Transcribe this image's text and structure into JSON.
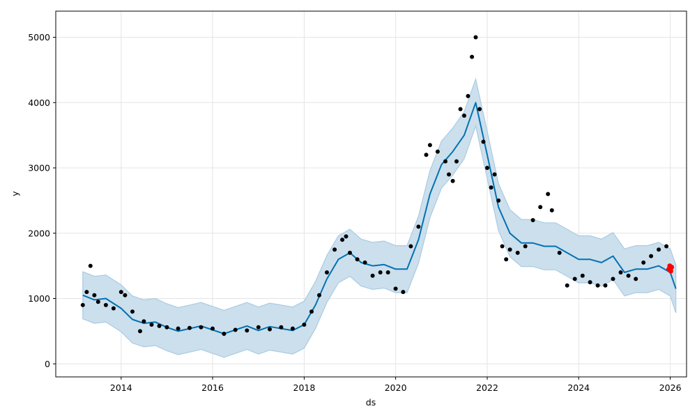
{
  "chart_data": {
    "type": "line",
    "title": "",
    "xlabel": "ds",
    "ylabel": "y",
    "xlim": [
      "2012-07-28",
      "2026-05-11"
    ],
    "ylim": [
      -200,
      5400
    ],
    "x_ticks": [
      "2014",
      "2016",
      "2018",
      "2020",
      "2022",
      "2024",
      "2026"
    ],
    "y_ticks": [
      0,
      1000,
      2000,
      3000,
      4000,
      5000
    ],
    "grid": true,
    "legend": "none",
    "colors": {
      "forecast_line": "#0072b2",
      "uncertainty_band": "#c6dceb",
      "uncertainty_edge": "#a9cbe2",
      "observed_points": "#000000",
      "highlight_points": "#ff0000",
      "grid": "#e4e4e4"
    },
    "series": [
      {
        "kind": "forecast",
        "x": [
          "2013-03-01",
          "2013-06-01",
          "2013-09-01",
          "2014-01-01",
          "2014-04-01",
          "2014-07-01",
          "2014-10-01",
          "2015-01-01",
          "2015-04-01",
          "2015-07-01",
          "2015-10-01",
          "2016-01-01",
          "2016-04-01",
          "2016-07-01",
          "2016-10-01",
          "2017-01-01",
          "2017-04-01",
          "2017-07-01",
          "2017-10-01",
          "2018-01-01",
          "2018-04-01",
          "2018-07-01",
          "2018-10-01",
          "2019-01-01",
          "2019-04-01",
          "2019-07-01",
          "2019-10-01",
          "2020-01-01",
          "2020-04-01",
          "2020-07-01",
          "2020-10-01",
          "2021-01-01",
          "2021-04-01",
          "2021-07-01",
          "2021-10-01",
          "2022-01-01",
          "2022-04-01",
          "2022-07-01",
          "2022-10-01",
          "2023-01-01",
          "2023-04-01",
          "2023-07-01",
          "2023-10-01",
          "2024-01-01",
          "2024-04-01",
          "2024-07-01",
          "2024-10-01",
          "2025-01-01",
          "2025-04-01",
          "2025-07-01",
          "2025-10-01",
          "2026-01-01",
          "2026-02-15"
        ],
        "yhat": [
          1050,
          980,
          1000,
          850,
          680,
          620,
          640,
          560,
          500,
          540,
          580,
          520,
          460,
          520,
          580,
          510,
          570,
          540,
          510,
          600,
          900,
          1300,
          1600,
          1700,
          1550,
          1500,
          1520,
          1450,
          1450,
          1900,
          2600,
          3050,
          3250,
          3500,
          4000,
          3200,
          2400,
          2000,
          1850,
          1850,
          1800,
          1800,
          1700,
          1600,
          1600,
          1550,
          1650,
          1400,
          1450,
          1450,
          1500,
          1400,
          1150
        ],
        "yhat_lower": [
          690,
          620,
          640,
          490,
          320,
          260,
          280,
          200,
          140,
          180,
          220,
          160,
          100,
          160,
          220,
          150,
          210,
          180,
          150,
          240,
          540,
          940,
          1240,
          1340,
          1190,
          1140,
          1160,
          1090,
          1090,
          1540,
          2240,
          2690,
          2890,
          3140,
          3640,
          2840,
          2040,
          1640,
          1490,
          1490,
          1440,
          1440,
          1340,
          1240,
          1240,
          1190,
          1290,
          1040,
          1090,
          1090,
          1140,
          1040,
          780
        ],
        "yhat_upper": [
          1410,
          1340,
          1360,
          1210,
          1040,
          980,
          1000,
          920,
          860,
          900,
          940,
          880,
          820,
          880,
          940,
          870,
          930,
          900,
          870,
          960,
          1260,
          1660,
          1960,
          2060,
          1910,
          1860,
          1880,
          1810,
          1810,
          2260,
          2960,
          3410,
          3610,
          3860,
          4360,
          3560,
          2760,
          2360,
          2210,
          2210,
          2160,
          2160,
          2060,
          1960,
          1960,
          1910,
          2010,
          1760,
          1810,
          1810,
          1860,
          1760,
          1520
        ]
      },
      {
        "kind": "observed",
        "x": [
          "2013-03-01",
          "2013-04-01",
          "2013-05-01",
          "2013-06-01",
          "2013-07-01",
          "2013-09-01",
          "2013-11-01",
          "2014-01-01",
          "2014-02-01",
          "2014-04-01",
          "2014-06-01",
          "2014-07-01",
          "2014-09-01",
          "2014-11-01",
          "2015-01-01",
          "2015-04-01",
          "2015-07-01",
          "2015-10-01",
          "2016-01-01",
          "2016-04-01",
          "2016-07-01",
          "2016-10-01",
          "2017-01-01",
          "2017-04-01",
          "2017-07-01",
          "2017-10-01",
          "2018-01-01",
          "2018-03-01",
          "2018-05-01",
          "2018-07-01",
          "2018-09-01",
          "2018-11-01",
          "2018-12-01",
          "2019-01-01",
          "2019-03-01",
          "2019-05-01",
          "2019-07-01",
          "2019-09-01",
          "2019-11-01",
          "2020-01-01",
          "2020-03-01",
          "2020-05-01",
          "2020-07-01",
          "2020-09-01",
          "2020-10-01",
          "2020-12-01",
          "2021-02-01",
          "2021-03-01",
          "2021-04-01",
          "2021-05-01",
          "2021-06-01",
          "2021-07-01",
          "2021-08-01",
          "2021-09-01",
          "2021-10-01",
          "2021-11-01",
          "2021-12-01",
          "2022-01-01",
          "2022-02-01",
          "2022-03-01",
          "2022-04-01",
          "2022-05-01",
          "2022-06-01",
          "2022-07-01",
          "2022-09-01",
          "2022-11-01",
          "2023-01-01",
          "2023-03-01",
          "2023-05-01",
          "2023-06-01",
          "2023-08-01",
          "2023-10-01",
          "2023-12-01",
          "2024-02-01",
          "2024-04-01",
          "2024-06-01",
          "2024-08-01",
          "2024-10-01",
          "2024-12-01",
          "2025-02-01",
          "2025-04-01",
          "2025-06-01",
          "2025-08-01",
          "2025-10-01",
          "2025-12-01"
        ],
        "y": [
          900,
          1100,
          1500,
          1050,
          950,
          900,
          850,
          1100,
          1050,
          800,
          500,
          650,
          600,
          580,
          560,
          540,
          550,
          560,
          540,
          460,
          520,
          510,
          560,
          530,
          560,
          540,
          600,
          800,
          1050,
          1400,
          1750,
          1900,
          1950,
          1700,
          1600,
          1550,
          1350,
          1400,
          1400,
          1150,
          1100,
          1800,
          2100,
          3200,
          3350,
          3250,
          3100,
          2900,
          2800,
          3100,
          3900,
          3800,
          4100,
          4700,
          5000,
          3900,
          3400,
          3000,
          2700,
          2900,
          2500,
          1800,
          1600,
          1750,
          1700,
          1800,
          2200,
          2400,
          2600,
          2350,
          1700,
          1200,
          1300,
          1350,
          1250,
          1200,
          1200,
          1300,
          1400,
          1350,
          1300,
          1550,
          1650,
          1750,
          1800
        ]
      },
      {
        "kind": "highlight",
        "x": [
          "2025-12-20",
          "2025-12-28",
          "2026-01-05",
          "2026-01-12"
        ],
        "y": [
          1450,
          1500,
          1420,
          1480
        ]
      }
    ]
  }
}
